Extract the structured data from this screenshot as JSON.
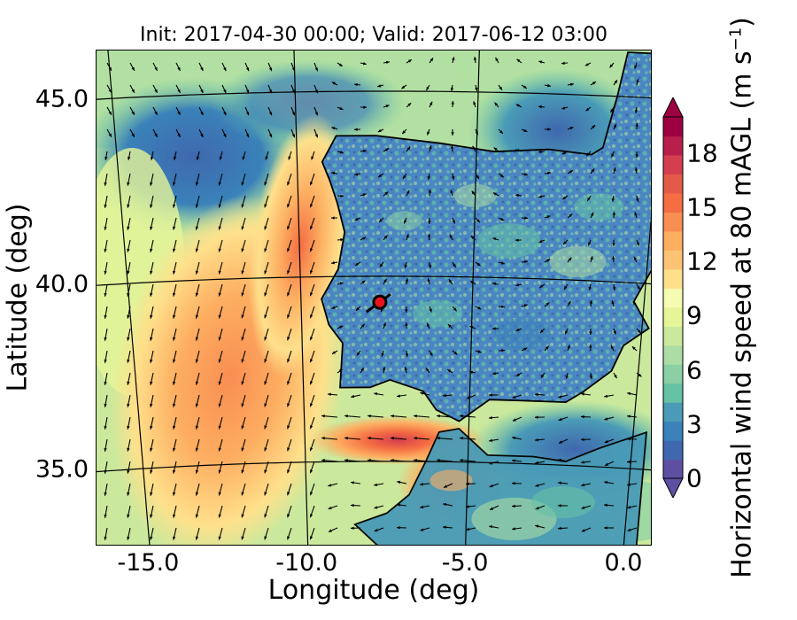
{
  "title": "Init: 2017-04-30 00:00; Valid: 2017-06-12 03:00",
  "map": {
    "xlabel": "Longitude (deg)",
    "ylabel": "Latitude (deg)",
    "lon_ticks": [
      "-15.0",
      "-10.0",
      "-5.0",
      "0.0"
    ],
    "lat_ticks": [
      "45.0",
      "40.0",
      "35.0"
    ],
    "lon_values": [
      -15,
      -10,
      -5,
      0
    ],
    "lat_values": [
      45,
      40,
      35
    ],
    "lon_range": [
      -15.9,
      0.2
    ],
    "lat_range": [
      32.7,
      46.1
    ],
    "marker": {
      "lon": -7.7,
      "lat": 39.3,
      "color": "#e8141e"
    }
  },
  "colorbar": {
    "label": "Horizontal wind speed at 80 mAGL (m s",
    "unit_superscript": "−1",
    "label_close": ")",
    "ticks": [
      "0",
      "3",
      "6",
      "9",
      "12",
      "15",
      "18"
    ],
    "tick_values": [
      0,
      3,
      6,
      9,
      12,
      15,
      18
    ],
    "range": [
      0,
      20
    ],
    "extend": "both",
    "colors": [
      "#5e4fa2",
      "#3f68ae",
      "#3a82b9",
      "#4a9bb7",
      "#66c2a5",
      "#8ad0a4",
      "#abdda4",
      "#cbe99d",
      "#e6f598",
      "#f6fbb2",
      "#fee08b",
      "#fdc374",
      "#fdae61",
      "#f98e52",
      "#f46d43",
      "#e45a49",
      "#d53e4f",
      "#b8204c",
      "#9e0142"
    ]
  }
}
